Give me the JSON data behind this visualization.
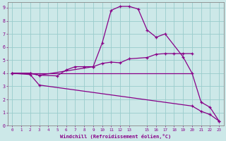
{
  "xlabel": "Windchill (Refroidissement éolien,°C)",
  "background_color": "#cce8e8",
  "line_color": "#880088",
  "grid_color": "#99cccc",
  "xlim": [
    -0.5,
    23.5
  ],
  "ylim": [
    0,
    9.4
  ],
  "xticks": [
    0,
    1,
    2,
    3,
    4,
    5,
    6,
    7,
    8,
    9,
    10,
    11,
    12,
    13,
    15,
    16,
    17,
    18,
    19,
    20,
    21,
    22,
    23
  ],
  "yticks": [
    0,
    1,
    2,
    3,
    4,
    5,
    6,
    7,
    8,
    9
  ],
  "series": {
    "flat": {
      "x": [
        0,
        20
      ],
      "y": [
        4.0,
        4.0
      ],
      "markers": false
    },
    "upper": {
      "x": [
        0,
        2,
        3,
        5,
        6,
        7,
        8,
        9,
        10,
        11,
        12,
        13,
        15,
        16,
        17,
        18,
        19,
        20
      ],
      "y": [
        4.0,
        4.0,
        3.85,
        3.8,
        4.25,
        4.5,
        4.5,
        4.5,
        4.75,
        4.85,
        4.8,
        5.1,
        5.2,
        5.45,
        5.5,
        5.5,
        5.5,
        5.5
      ],
      "markers": true
    },
    "peak": {
      "x": [
        0,
        2,
        3,
        9,
        10,
        11,
        12,
        13,
        14,
        15,
        16,
        17,
        19,
        20,
        21,
        22,
        23
      ],
      "y": [
        4.0,
        4.0,
        3.85,
        4.5,
        6.3,
        8.8,
        9.1,
        9.1,
        8.9,
        7.3,
        6.75,
        7.0,
        5.25,
        4.0,
        1.8,
        1.4,
        0.35
      ],
      "markers": true
    },
    "lower": {
      "x": [
        0,
        2,
        3,
        20,
        21,
        22,
        23
      ],
      "y": [
        4.0,
        3.9,
        3.1,
        1.5,
        1.1,
        0.85,
        0.35
      ],
      "markers": true
    }
  }
}
